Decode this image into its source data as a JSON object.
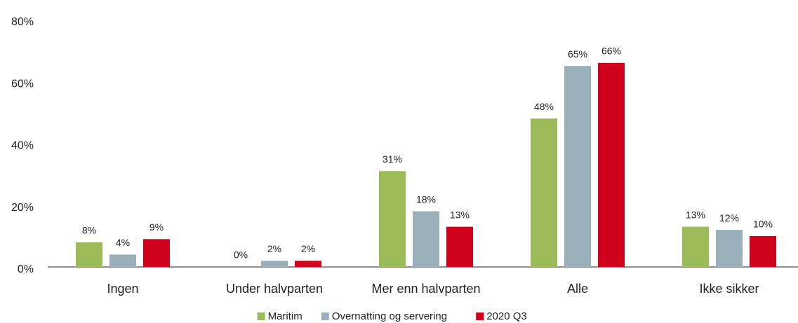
{
  "chart_data": {
    "type": "bar",
    "categories": [
      "Ingen",
      "Under halvparten",
      "Mer enn halvparten",
      "Alle",
      "Ikke sikker"
    ],
    "series": [
      {
        "name": "Maritim",
        "color": "#9bbb59",
        "values": [
          8,
          0,
          31,
          48,
          13
        ],
        "value_labels": [
          "8%",
          "0%",
          "31%",
          "48%",
          "13%"
        ]
      },
      {
        "name": "Overnatting og servering",
        "color": "#9aafba",
        "values": [
          4,
          2,
          18,
          65,
          12
        ],
        "value_labels": [
          "4%",
          "2%",
          "18%",
          "65%",
          "12%"
        ]
      },
      {
        "name": "2020 Q3",
        "color": "#d0021b",
        "values": [
          9,
          2,
          13,
          66,
          10
        ],
        "value_labels": [
          "9%",
          "2%",
          "13%",
          "66%",
          "10%"
        ]
      }
    ],
    "ylim": [
      0,
      80
    ],
    "yticks": [
      {
        "value": 0,
        "label": "0%"
      },
      {
        "value": 20,
        "label": "20%"
      },
      {
        "value": 40,
        "label": "40%"
      },
      {
        "value": 60,
        "label": "60%"
      },
      {
        "value": 80,
        "label": "80%"
      }
    ],
    "legend": "bottom"
  }
}
